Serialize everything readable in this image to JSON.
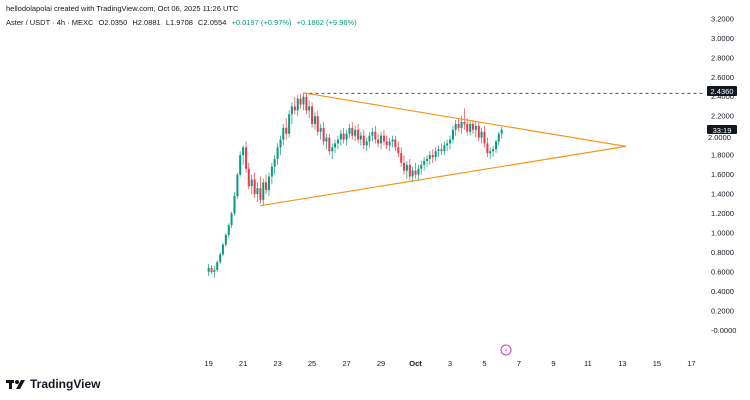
{
  "header": {
    "credit": "hellodolapolai created with TradingView.com, Oct 06, 2025 11:26 UTC",
    "symbol": "Aster / USDT · 4h · MEXC",
    "open": "O2.0350",
    "high": "H2.0881",
    "low": "L1.9708",
    "close": "C2.0554",
    "change": "+0.0197 (+0.97%)",
    "change_ma": "+0.1862 (+9.96%)"
  },
  "price_tags": {
    "resistance": "2.4360",
    "last": "33:19",
    "last_covered": "2.0000"
  },
  "logo_text": "TradingView",
  "event_badge": "⚡",
  "colors": {
    "up": "#089981",
    "down": "#f23645",
    "pattern": "#f7931a",
    "tag_bg": "#131722"
  },
  "chart_data": {
    "type": "candlestick",
    "y_tick_labels": [
      "3.2000",
      "3.0000",
      "2.8000",
      "2.6000",
      "2.4000",
      "2.2000",
      "2.0000",
      "1.8000",
      "1.6000",
      "1.4000",
      "1.2000",
      "1.0000",
      "0.8000",
      "0.6000",
      "0.4000",
      "0.2000",
      "-0.0000"
    ],
    "y_ticks": [
      3.2,
      3.0,
      2.8,
      2.6,
      2.4,
      2.2,
      2.0,
      1.8,
      1.6,
      1.4,
      1.2,
      1.0,
      0.8,
      0.6,
      0.4,
      0.2,
      0.0
    ],
    "ylim": [
      -0.1,
      3.25
    ],
    "x_tick_labels": [
      "19",
      "21",
      "23",
      "25",
      "27",
      "29",
      "Oct",
      "3",
      "5",
      "7",
      "9",
      "11",
      "13",
      "15",
      "17"
    ],
    "x_ticks_day": [
      0,
      2,
      4,
      6,
      8,
      10,
      12,
      14,
      16,
      18,
      20,
      22,
      24,
      26,
      28
    ],
    "xlim_day": [
      -0.5,
      28.5
    ],
    "resistance_level": 2.436,
    "triangle": {
      "upper": [
        [
          5.5,
          2.44
        ],
        [
          24.2,
          1.89
        ]
      ],
      "lower": [
        [
          3.0,
          1.28
        ],
        [
          24.2,
          1.89
        ]
      ]
    },
    "candles": [
      {
        "d": 0.0,
        "o": 0.6,
        "h": 0.68,
        "l": 0.56,
        "c": 0.64
      },
      {
        "d": 0.17,
        "o": 0.64,
        "h": 0.67,
        "l": 0.58,
        "c": 0.6
      },
      {
        "d": 0.33,
        "o": 0.6,
        "h": 0.66,
        "l": 0.54,
        "c": 0.62
      },
      {
        "d": 0.5,
        "o": 0.62,
        "h": 0.72,
        "l": 0.6,
        "c": 0.7
      },
      {
        "d": 0.67,
        "o": 0.7,
        "h": 0.8,
        "l": 0.68,
        "c": 0.78
      },
      {
        "d": 0.83,
        "o": 0.78,
        "h": 0.9,
        "l": 0.76,
        "c": 0.88
      },
      {
        "d": 1.0,
        "o": 0.88,
        "h": 1.0,
        "l": 0.86,
        "c": 0.98
      },
      {
        "d": 1.17,
        "o": 0.98,
        "h": 1.1,
        "l": 0.95,
        "c": 1.08
      },
      {
        "d": 1.33,
        "o": 1.08,
        "h": 1.22,
        "l": 1.05,
        "c": 1.2
      },
      {
        "d": 1.5,
        "o": 1.2,
        "h": 1.42,
        "l": 1.18,
        "c": 1.38
      },
      {
        "d": 1.67,
        "o": 1.38,
        "h": 1.62,
        "l": 1.35,
        "c": 1.6
      },
      {
        "d": 1.83,
        "o": 1.6,
        "h": 1.84,
        "l": 1.58,
        "c": 1.8
      },
      {
        "d": 2.0,
        "o": 1.8,
        "h": 1.9,
        "l": 1.7,
        "c": 1.88
      },
      {
        "d": 2.17,
        "o": 1.88,
        "h": 1.94,
        "l": 1.62,
        "c": 1.66
      },
      {
        "d": 2.33,
        "o": 1.66,
        "h": 1.72,
        "l": 1.45,
        "c": 1.48
      },
      {
        "d": 2.5,
        "o": 1.48,
        "h": 1.6,
        "l": 1.4,
        "c": 1.55
      },
      {
        "d": 2.67,
        "o": 1.55,
        "h": 1.62,
        "l": 1.36,
        "c": 1.4
      },
      {
        "d": 2.83,
        "o": 1.4,
        "h": 1.52,
        "l": 1.32,
        "c": 1.46
      },
      {
        "d": 3.0,
        "o": 1.46,
        "h": 1.58,
        "l": 1.3,
        "c": 1.34
      },
      {
        "d": 3.17,
        "o": 1.34,
        "h": 1.56,
        "l": 1.28,
        "c": 1.52
      },
      {
        "d": 3.33,
        "o": 1.52,
        "h": 1.6,
        "l": 1.4,
        "c": 1.44
      },
      {
        "d": 3.5,
        "o": 1.44,
        "h": 1.62,
        "l": 1.38,
        "c": 1.58
      },
      {
        "d": 3.67,
        "o": 1.58,
        "h": 1.72,
        "l": 1.5,
        "c": 1.68
      },
      {
        "d": 3.83,
        "o": 1.68,
        "h": 1.8,
        "l": 1.6,
        "c": 1.76
      },
      {
        "d": 4.0,
        "o": 1.76,
        "h": 1.92,
        "l": 1.7,
        "c": 1.88
      },
      {
        "d": 4.17,
        "o": 1.88,
        "h": 2.0,
        "l": 1.8,
        "c": 1.96
      },
      {
        "d": 4.33,
        "o": 1.96,
        "h": 2.12,
        "l": 1.9,
        "c": 2.08
      },
      {
        "d": 4.5,
        "o": 2.08,
        "h": 2.18,
        "l": 1.96,
        "c": 2.02
      },
      {
        "d": 4.67,
        "o": 2.02,
        "h": 2.26,
        "l": 1.98,
        "c": 2.22
      },
      {
        "d": 4.83,
        "o": 2.22,
        "h": 2.34,
        "l": 2.12,
        "c": 2.3
      },
      {
        "d": 5.0,
        "o": 2.3,
        "h": 2.4,
        "l": 2.22,
        "c": 2.26
      },
      {
        "d": 5.17,
        "o": 2.26,
        "h": 2.42,
        "l": 2.2,
        "c": 2.38
      },
      {
        "d": 5.33,
        "o": 2.38,
        "h": 2.43,
        "l": 2.28,
        "c": 2.32
      },
      {
        "d": 5.5,
        "o": 2.32,
        "h": 2.44,
        "l": 2.26,
        "c": 2.4
      },
      {
        "d": 5.67,
        "o": 2.4,
        "h": 2.44,
        "l": 2.22,
        "c": 2.26
      },
      {
        "d": 5.83,
        "o": 2.26,
        "h": 2.36,
        "l": 2.18,
        "c": 2.3
      },
      {
        "d": 6.0,
        "o": 2.3,
        "h": 2.34,
        "l": 2.08,
        "c": 2.12
      },
      {
        "d": 6.17,
        "o": 2.12,
        "h": 2.24,
        "l": 2.06,
        "c": 2.2
      },
      {
        "d": 6.33,
        "o": 2.2,
        "h": 2.26,
        "l": 2.0,
        "c": 2.04
      },
      {
        "d": 6.5,
        "o": 2.04,
        "h": 2.12,
        "l": 1.96,
        "c": 2.08
      },
      {
        "d": 6.67,
        "o": 2.08,
        "h": 2.14,
        "l": 1.9,
        "c": 1.94
      },
      {
        "d": 6.83,
        "o": 1.94,
        "h": 2.02,
        "l": 1.86,
        "c": 1.98
      },
      {
        "d": 7.0,
        "o": 1.98,
        "h": 2.02,
        "l": 1.8,
        "c": 1.84
      },
      {
        "d": 7.17,
        "o": 1.84,
        "h": 1.92,
        "l": 1.76,
        "c": 1.88
      },
      {
        "d": 7.33,
        "o": 1.88,
        "h": 1.96,
        "l": 1.82,
        "c": 1.92
      },
      {
        "d": 7.5,
        "o": 1.92,
        "h": 2.0,
        "l": 1.86,
        "c": 1.96
      },
      {
        "d": 7.67,
        "o": 1.96,
        "h": 2.06,
        "l": 1.9,
        "c": 2.02
      },
      {
        "d": 7.83,
        "o": 2.02,
        "h": 2.08,
        "l": 1.92,
        "c": 1.96
      },
      {
        "d": 8.0,
        "o": 1.96,
        "h": 2.06,
        "l": 1.9,
        "c": 2.02
      },
      {
        "d": 8.17,
        "o": 2.02,
        "h": 2.12,
        "l": 1.98,
        "c": 2.08
      },
      {
        "d": 8.33,
        "o": 2.08,
        "h": 2.14,
        "l": 1.96,
        "c": 2.0
      },
      {
        "d": 8.5,
        "o": 2.0,
        "h": 2.1,
        "l": 1.94,
        "c": 2.06
      },
      {
        "d": 8.67,
        "o": 2.06,
        "h": 2.12,
        "l": 1.92,
        "c": 1.96
      },
      {
        "d": 8.83,
        "o": 1.96,
        "h": 2.04,
        "l": 1.9,
        "c": 2.0
      },
      {
        "d": 9.0,
        "o": 2.0,
        "h": 2.06,
        "l": 1.86,
        "c": 1.9
      },
      {
        "d": 9.17,
        "o": 1.9,
        "h": 1.98,
        "l": 1.84,
        "c": 1.94
      },
      {
        "d": 9.33,
        "o": 1.94,
        "h": 2.04,
        "l": 1.88,
        "c": 2.0
      },
      {
        "d": 9.5,
        "o": 2.0,
        "h": 2.08,
        "l": 1.94,
        "c": 2.04
      },
      {
        "d": 9.67,
        "o": 2.04,
        "h": 2.1,
        "l": 1.92,
        "c": 1.96
      },
      {
        "d": 9.83,
        "o": 1.96,
        "h": 2.02,
        "l": 1.88,
        "c": 1.92
      },
      {
        "d": 10.0,
        "o": 1.92,
        "h": 2.04,
        "l": 1.86,
        "c": 2.0
      },
      {
        "d": 10.17,
        "o": 2.0,
        "h": 2.06,
        "l": 1.9,
        "c": 1.94
      },
      {
        "d": 10.33,
        "o": 1.94,
        "h": 2.0,
        "l": 1.86,
        "c": 1.9
      },
      {
        "d": 10.5,
        "o": 1.9,
        "h": 1.98,
        "l": 1.84,
        "c": 1.94
      },
      {
        "d": 10.67,
        "o": 1.94,
        "h": 2.0,
        "l": 1.88,
        "c": 1.96
      },
      {
        "d": 10.83,
        "o": 1.96,
        "h": 2.0,
        "l": 1.84,
        "c": 1.88
      },
      {
        "d": 11.0,
        "o": 1.88,
        "h": 1.94,
        "l": 1.78,
        "c": 1.82
      },
      {
        "d": 11.17,
        "o": 1.82,
        "h": 1.88,
        "l": 1.68,
        "c": 1.72
      },
      {
        "d": 11.33,
        "o": 1.72,
        "h": 1.8,
        "l": 1.6,
        "c": 1.64
      },
      {
        "d": 11.5,
        "o": 1.64,
        "h": 1.74,
        "l": 1.56,
        "c": 1.7
      },
      {
        "d": 11.67,
        "o": 1.7,
        "h": 1.76,
        "l": 1.54,
        "c": 1.58
      },
      {
        "d": 11.83,
        "o": 1.58,
        "h": 1.68,
        "l": 1.52,
        "c": 1.64
      },
      {
        "d": 12.0,
        "o": 1.64,
        "h": 1.72,
        "l": 1.56,
        "c": 1.6
      },
      {
        "d": 12.17,
        "o": 1.6,
        "h": 1.7,
        "l": 1.54,
        "c": 1.66
      },
      {
        "d": 12.33,
        "o": 1.66,
        "h": 1.74,
        "l": 1.6,
        "c": 1.7
      },
      {
        "d": 12.5,
        "o": 1.7,
        "h": 1.78,
        "l": 1.64,
        "c": 1.74
      },
      {
        "d": 12.67,
        "o": 1.74,
        "h": 1.8,
        "l": 1.68,
        "c": 1.76
      },
      {
        "d": 12.83,
        "o": 1.76,
        "h": 1.84,
        "l": 1.7,
        "c": 1.8
      },
      {
        "d": 13.0,
        "o": 1.8,
        "h": 1.86,
        "l": 1.72,
        "c": 1.78
      },
      {
        "d": 13.17,
        "o": 1.78,
        "h": 1.88,
        "l": 1.74,
        "c": 1.84
      },
      {
        "d": 13.33,
        "o": 1.84,
        "h": 1.9,
        "l": 1.78,
        "c": 1.86
      },
      {
        "d": 13.5,
        "o": 1.86,
        "h": 1.92,
        "l": 1.8,
        "c": 1.84
      },
      {
        "d": 13.67,
        "o": 1.84,
        "h": 1.94,
        "l": 1.8,
        "c": 1.9
      },
      {
        "d": 13.83,
        "o": 1.9,
        "h": 1.96,
        "l": 1.84,
        "c": 1.92
      },
      {
        "d": 14.0,
        "o": 1.92,
        "h": 2.0,
        "l": 1.86,
        "c": 1.96
      },
      {
        "d": 14.17,
        "o": 1.96,
        "h": 2.1,
        "l": 1.92,
        "c": 2.06
      },
      {
        "d": 14.33,
        "o": 2.06,
        "h": 2.16,
        "l": 2.0,
        "c": 2.12
      },
      {
        "d": 14.5,
        "o": 2.12,
        "h": 2.18,
        "l": 2.04,
        "c": 2.08
      },
      {
        "d": 14.67,
        "o": 2.08,
        "h": 2.2,
        "l": 2.02,
        "c": 2.14
      },
      {
        "d": 14.83,
        "o": 2.14,
        "h": 2.28,
        "l": 2.06,
        "c": 2.12
      },
      {
        "d": 15.0,
        "o": 2.12,
        "h": 2.18,
        "l": 2.0,
        "c": 2.04
      },
      {
        "d": 15.17,
        "o": 2.04,
        "h": 2.16,
        "l": 2.0,
        "c": 2.12
      },
      {
        "d": 15.33,
        "o": 2.12,
        "h": 2.16,
        "l": 2.02,
        "c": 2.06
      },
      {
        "d": 15.5,
        "o": 2.06,
        "h": 2.14,
        "l": 1.98,
        "c": 2.1
      },
      {
        "d": 15.67,
        "o": 2.1,
        "h": 2.14,
        "l": 1.94,
        "c": 1.98
      },
      {
        "d": 15.83,
        "o": 1.98,
        "h": 2.08,
        "l": 1.92,
        "c": 2.04
      },
      {
        "d": 16.0,
        "o": 2.04,
        "h": 2.1,
        "l": 1.88,
        "c": 1.92
      },
      {
        "d": 16.17,
        "o": 1.92,
        "h": 1.98,
        "l": 1.78,
        "c": 1.82
      },
      {
        "d": 16.33,
        "o": 1.82,
        "h": 1.88,
        "l": 1.76,
        "c": 1.84
      },
      {
        "d": 16.5,
        "o": 1.84,
        "h": 1.9,
        "l": 1.78,
        "c": 1.86
      },
      {
        "d": 16.67,
        "o": 1.86,
        "h": 1.96,
        "l": 1.82,
        "c": 1.94
      },
      {
        "d": 16.83,
        "o": 1.94,
        "h": 2.04,
        "l": 1.9,
        "c": 2.02
      },
      {
        "d": 17.0,
        "o": 2.02,
        "h": 2.09,
        "l": 1.97,
        "c": 2.06
      }
    ]
  }
}
